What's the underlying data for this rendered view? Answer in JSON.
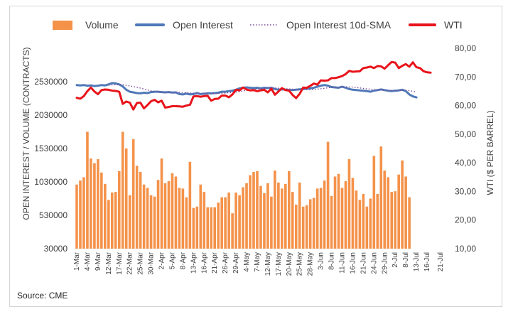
{
  "chart_data": {
    "type": "bar+line",
    "legend": [
      "Volume",
      "Open Interest",
      "Open Interest 10d-SMA",
      "WTI"
    ],
    "legend_position": "top",
    "ylabel_left": "OPEN INTEREST / VOLUME (CONTRACTS)",
    "ylabel_right": "WTI ($ PER BARREL)",
    "yticks_left": [
      "30000",
      "530000",
      "1030000",
      "1530000",
      "2030000",
      "2530000"
    ],
    "ylim_left": [
      30000,
      3030000
    ],
    "yticks_right": [
      "10,00",
      "20,00",
      "30,00",
      "40,00",
      "50,00",
      "60,00",
      "70,00",
      "80,00"
    ],
    "ylim_right": [
      10,
      80
    ],
    "grid": false,
    "xtick_labels": [
      "1-Mar",
      "4-Mar",
      "9-Mar",
      "12-Mar",
      "17-Mar",
      "22-Mar",
      "25-Mar",
      "30-Mar",
      "2-Apr",
      "5-Apr",
      "8-Apr",
      "13-Apr",
      "16-Apr",
      "21-Apr",
      "26-Apr",
      "29-Apr",
      "4-May",
      "7-May",
      "12-May",
      "17-May",
      "20-May",
      "25-May",
      "28-May",
      "3-Jun",
      "8-Jun",
      "11-Jun",
      "16-Jun",
      "21-Jun",
      "24-Jun",
      "29-Jun",
      "2-Jul",
      "8-Jul",
      "13-Jul",
      "16-Jul",
      "21-Jul"
    ],
    "n_days": 101,
    "series": [
      {
        "name": "Volume",
        "type": "bar",
        "axis": "left",
        "color": "#F4924A",
        "values": [
          990000,
          1050000,
          1100000,
          1780000,
          1380000,
          1310000,
          1370000,
          1170000,
          1000000,
          760000,
          870000,
          880000,
          1190000,
          1780000,
          1530000,
          830000,
          1670000,
          1270000,
          1180000,
          990000,
          940000,
          830000,
          810000,
          1060000,
          1380000,
          1010000,
          1040000,
          1160000,
          1110000,
          940000,
          930000,
          800000,
          1330000,
          640000,
          660000,
          990000,
          880000,
          650000,
          650000,
          650000,
          720000,
          800000,
          800000,
          870000,
          560000,
          870000,
          830000,
          950000,
          1010000,
          1130000,
          1180000,
          1190000,
          970000,
          860000,
          1010000,
          810000,
          1200000,
          1020000,
          930000,
          1000000,
          1190000,
          880000,
          690000,
          1020000,
          660000,
          680000,
          770000,
          790000,
          930000,
          940000,
          1050000,
          1630000,
          820000,
          1110000,
          1150000,
          940000,
          1040000,
          1370000,
          1090000,
          900000,
          760000,
          850000,
          660000,
          780000,
          1420000,
          850000,
          1560000,
          1200000,
          1100000,
          880000,
          890000,
          1140000,
          1350000,
          1110000,
          800000
        ],
        "gap_after_index": 96
      },
      {
        "name": "Open Interest",
        "type": "line",
        "axis": "left",
        "color": "#4F78B8",
        "values": [
          2480000,
          2475000,
          2480000,
          2470000,
          2475000,
          2465000,
          2470000,
          2480000,
          2475000,
          2490000,
          2510000,
          2505000,
          2490000,
          2460000,
          2410000,
          2380000,
          2370000,
          2360000,
          2355000,
          2365000,
          2360000,
          2375000,
          2380000,
          2380000,
          2375000,
          2370000,
          2375000,
          2368000,
          2370000,
          2345000,
          2340000,
          2350000,
          2340000,
          2345000,
          2360000,
          2345000,
          2350000,
          2355000,
          2355000,
          2360000,
          2365000,
          2380000,
          2380000,
          2390000,
          2395000,
          2410000,
          2430000,
          2440000,
          2445000,
          2440000,
          2435000,
          2440000,
          2430000,
          2440000,
          2435000,
          2440000,
          2420000,
          2410000,
          2415000,
          2410000,
          2405000,
          2405000,
          2410000,
          2415000,
          2420000,
          2425000,
          2430000,
          2440000,
          2455000,
          2470000,
          2480000,
          2470000,
          2450000,
          2445000,
          2440000,
          2455000,
          2440000,
          2420000,
          2410000,
          2405000,
          2400000,
          2395000,
          2390000,
          2380000,
          2395000,
          2405000,
          2415000,
          2405000,
          2395000,
          2390000,
          2395000,
          2400000,
          2410000,
          2390000,
          2340000,
          2310000,
          2295000
        ]
      },
      {
        "name": "Open Interest 10d-SMA",
        "type": "line",
        "style": "dotted",
        "axis": "left",
        "color": "#7A4A99",
        "values": [
          null,
          null,
          null,
          null,
          null,
          null,
          null,
          null,
          null,
          2479000,
          2482000,
          2485000,
          2486000,
          2484000,
          2477000,
          2467000,
          2457000,
          2445000,
          2434000,
          2422000,
          2407000,
          2394000,
          2383000,
          2378000,
          2374000,
          2373000,
          2373000,
          2373000,
          2373000,
          2371000,
          2369000,
          2366000,
          2362000,
          2359000,
          2357000,
          2355000,
          2353000,
          2352000,
          2351000,
          2352000,
          2354000,
          2357000,
          2360000,
          2365000,
          2368000,
          2375000,
          2383000,
          2391000,
          2400000,
          2409000,
          2416000,
          2422000,
          2427000,
          2432000,
          2436000,
          2436000,
          2435000,
          2432000,
          2429000,
          2425000,
          2422000,
          2418000,
          2416000,
          2414000,
          2412000,
          2411000,
          2412000,
          2415000,
          2419000,
          2425000,
          2432000,
          2439000,
          2444000,
          2447000,
          2449000,
          2452000,
          2453000,
          2451000,
          2448000,
          2444000,
          2436000,
          2429000,
          2423000,
          2417000,
          2412000,
          2407000,
          2404000,
          2402000,
          2400000,
          2399000,
          2398000,
          2398000,
          2400000,
          2400000,
          2395000,
          2386000,
          2375000
        ]
      },
      {
        "name": "WTI",
        "type": "line",
        "axis": "right",
        "color": "#E8141B",
        "values": [
          62.7,
          62.4,
          63.3,
          65.0,
          66.3,
          64.9,
          64.0,
          65.4,
          65.6,
          65.5,
          65.2,
          65.1,
          64.8,
          60.6,
          61.4,
          61.0,
          58.6,
          60.9,
          61.0,
          59.0,
          60.2,
          61.5,
          62.0,
          61.1,
          61.7,
          59.3,
          59.5,
          59.8,
          59.8,
          59.7,
          59.6,
          60.0,
          60.3,
          63.2,
          63.3,
          63.1,
          63.3,
          63.4,
          61.7,
          62.3,
          62.4,
          63.5,
          63.5,
          62.9,
          63.9,
          65.5,
          65.3,
          66.3,
          65.6,
          65.3,
          65.4,
          65.0,
          65.3,
          65.5,
          64.6,
          65.9,
          63.8,
          64.9,
          66.1,
          65.4,
          65.2,
          63.7,
          62.6,
          64.1,
          66.3,
          66.2,
          66.9,
          67.7,
          67.3,
          68.8,
          68.7,
          68.8,
          69.6,
          69.6,
          69.9,
          70.3,
          71.0,
          72.1,
          71.8,
          71.9,
          72.0,
          73.1,
          73.3,
          73.6,
          73.1,
          73.8,
          73.7,
          72.9,
          74.1,
          75.2,
          75.0,
          73.1,
          73.9,
          74.5,
          73.6,
          75.1,
          73.4,
          73.1,
          72.0,
          71.6,
          71.5
        ]
      }
    ]
  },
  "source_text": "Source: CME"
}
